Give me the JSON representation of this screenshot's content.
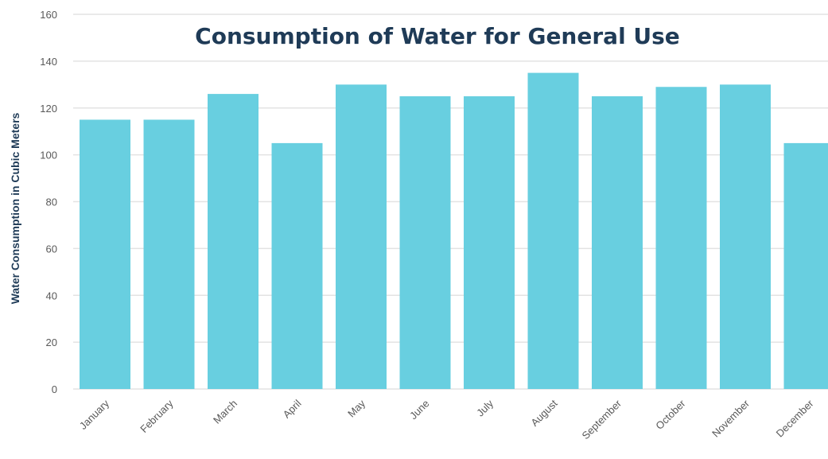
{
  "chart_data": {
    "type": "bar",
    "title": "Consumption of Water for General Use",
    "xlabel": "",
    "ylabel": "Water Consumption in Cubic Meters",
    "categories": [
      "January",
      "February",
      "March",
      "April",
      "May",
      "June",
      "July",
      "August",
      "September",
      "October",
      "November",
      "December"
    ],
    "values": [
      115,
      115,
      126,
      105,
      130,
      125,
      125,
      135,
      125,
      129,
      130,
      105
    ],
    "ylim": [
      0,
      160
    ],
    "yticks": [
      0,
      20,
      40,
      60,
      80,
      100,
      120,
      140,
      160
    ],
    "grid": true,
    "legend": "none",
    "bar_color": "#68cfe0",
    "grid_color": "#e3e3e3",
    "title_color": "#1f3b57"
  }
}
